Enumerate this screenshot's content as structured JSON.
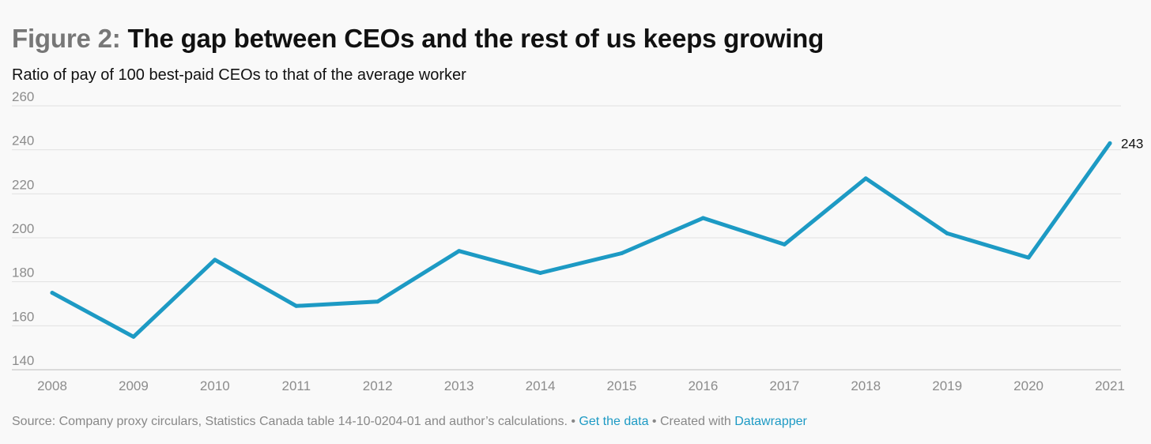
{
  "header": {
    "title_prefix": "Figure 2:",
    "title_main": "The gap between CEOs and the rest of us keeps growing",
    "subtitle": "Ratio of pay of 100 best-paid CEOs to that of the average worker"
  },
  "chart_data": {
    "type": "line",
    "x": [
      "2008",
      "2009",
      "2010",
      "2011",
      "2012",
      "2013",
      "2014",
      "2015",
      "2016",
      "2017",
      "2018",
      "2019",
      "2020",
      "2021"
    ],
    "series": [
      {
        "values": [
          175,
          155,
          190,
          169,
          171,
          194,
          184,
          193,
          209,
          197,
          227,
          202,
          191,
          243
        ],
        "color": "#1d9ac4"
      }
    ],
    "ylim": [
      140,
      260
    ],
    "yticks": [
      140,
      160,
      180,
      200,
      220,
      240,
      260
    ],
    "grid": true,
    "end_label": "243"
  },
  "footer": {
    "source": "Source: Company proxy circulars, Statistics Canada table 14-10-0204-01 and author’s calculations.",
    "sep1": " • ",
    "get_data": "Get the data",
    "sep2": " • Created with ",
    "datawrapper": "Datawrapper"
  }
}
